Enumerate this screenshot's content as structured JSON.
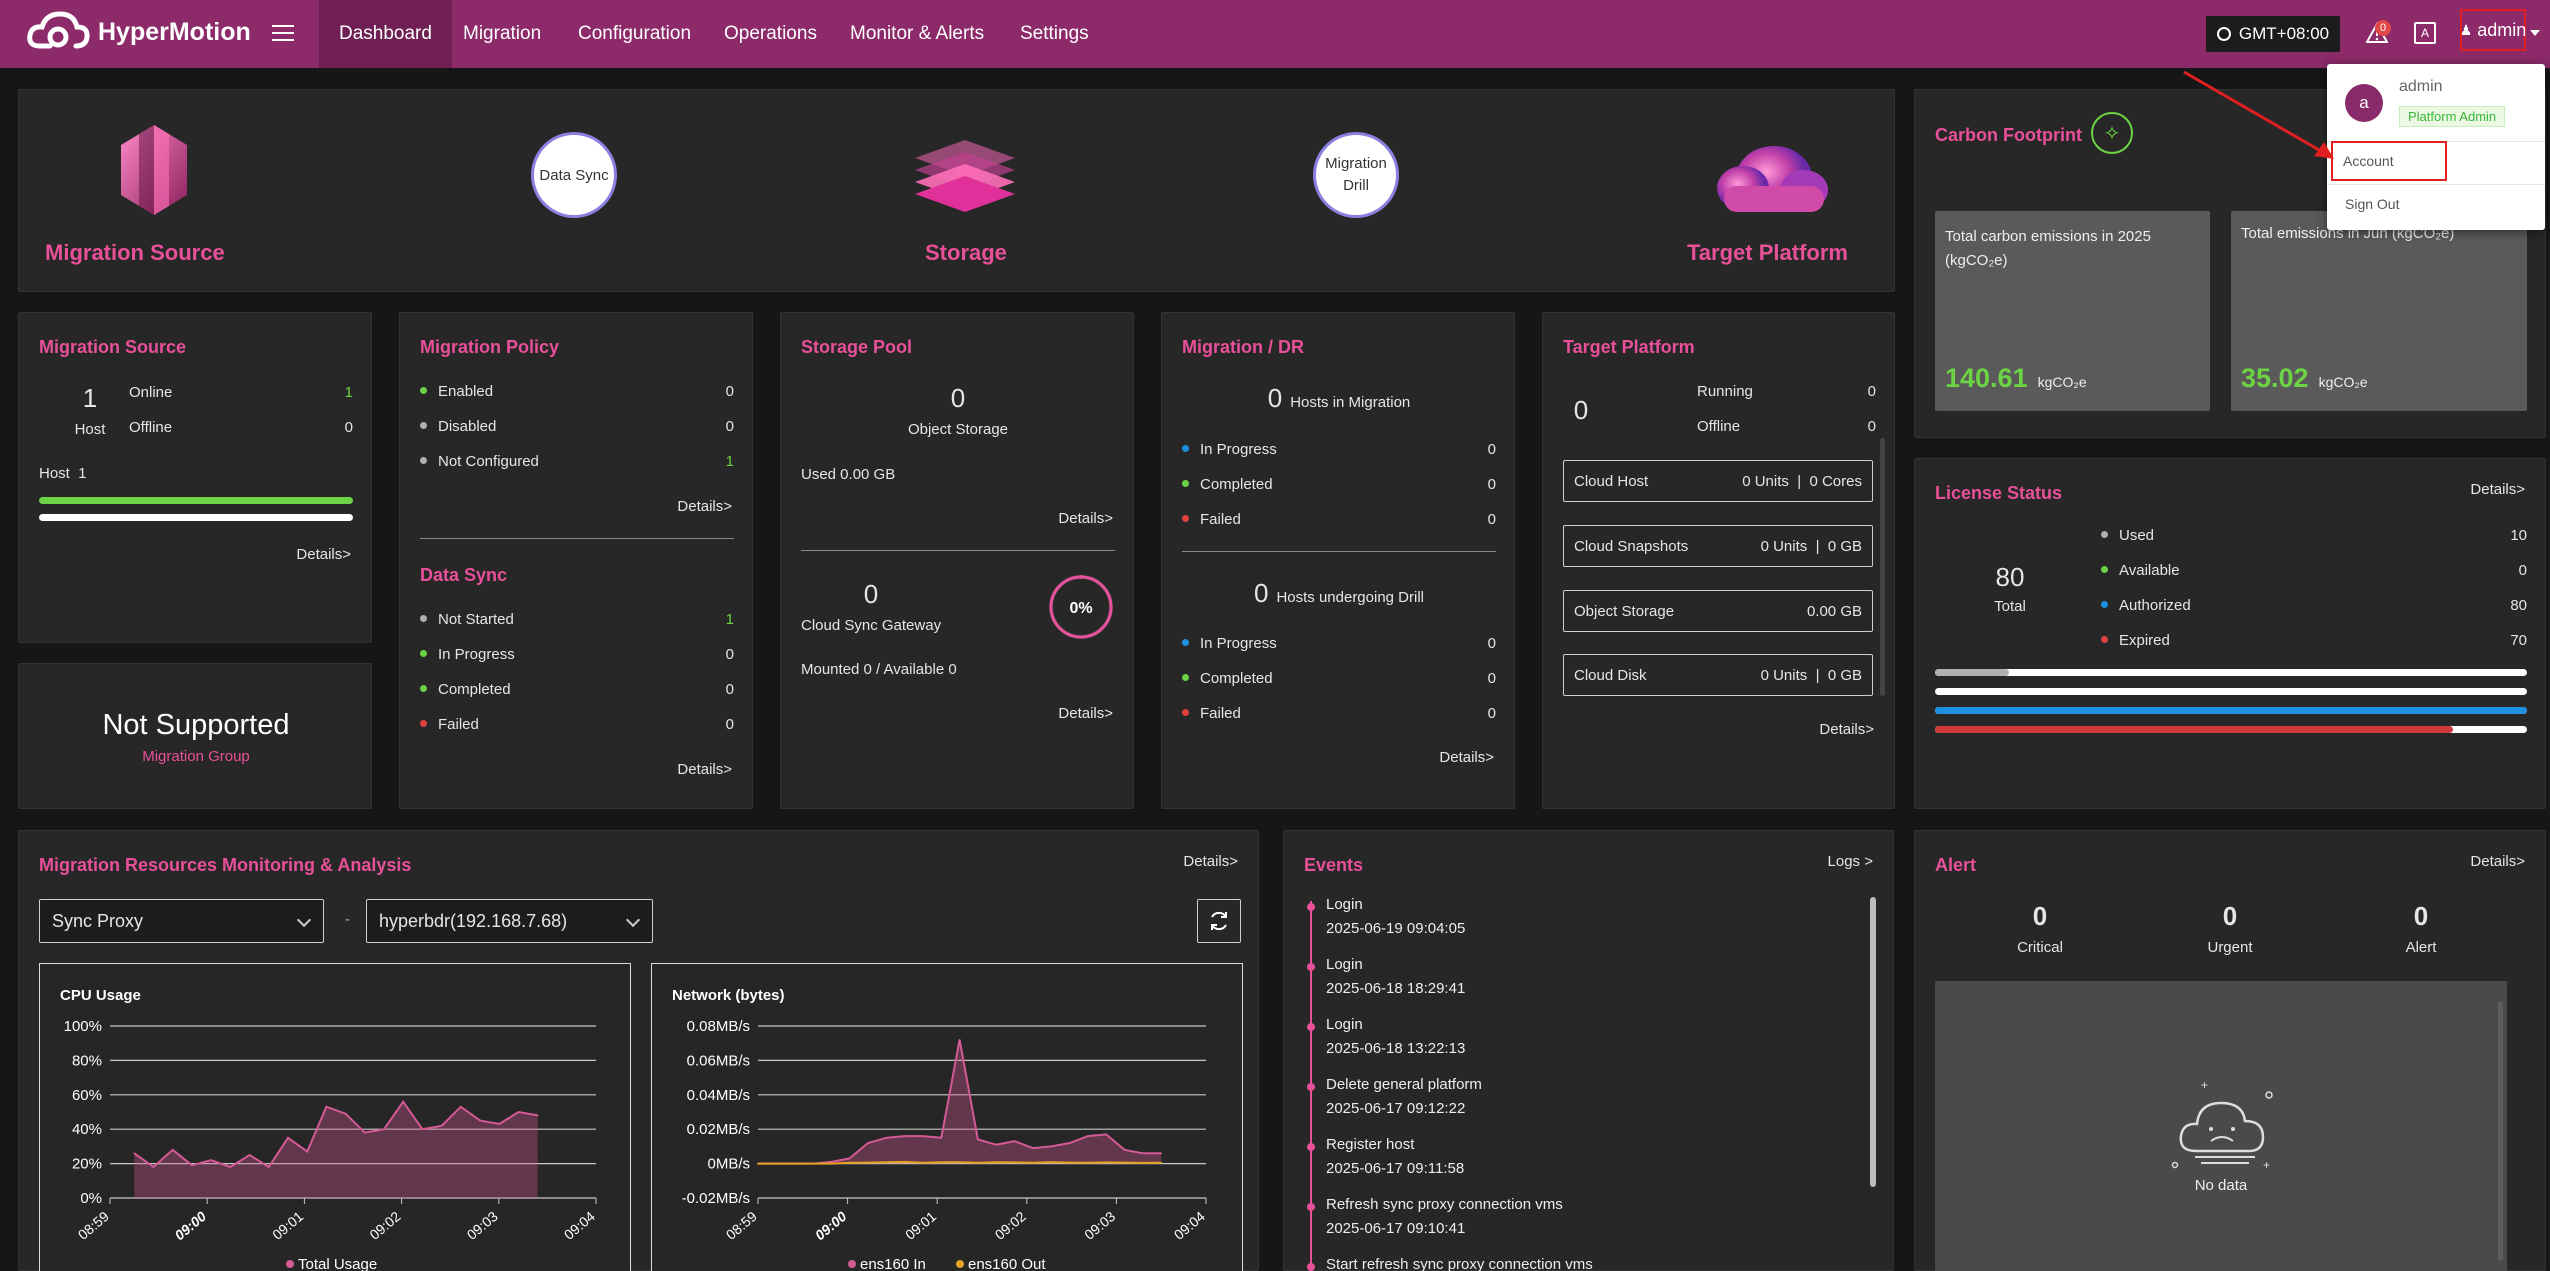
{
  "app": {
    "name": "HyperMotion"
  },
  "nav": {
    "tabs": [
      "Dashboard",
      "Migration",
      "Configuration",
      "Operations",
      "Monitor & Alerts",
      "Settings"
    ],
    "active": "Dashboard"
  },
  "header": {
    "timezone": "GMT+08:00",
    "alert_badge": "0",
    "user": "admin"
  },
  "user_menu": {
    "avatar_letter": "a",
    "name": "admin",
    "role": "Platform Admin",
    "items": [
      "Account",
      "Sign Out"
    ]
  },
  "flow": {
    "source": "Migration Source",
    "storage": "Storage",
    "target": "Target Platform",
    "node1": "Data Sync",
    "node2_line1": "Migration",
    "node2_line2": "Drill"
  },
  "carbon": {
    "title": "Carbon Footprint",
    "total_label_line1": "Total carbon emissions in 2025",
    "total_label_line2": "(kgCO₂e)",
    "total_value": "140.61",
    "month_label": "Total emissions in Jun (kgCO₂e)",
    "month_value": "35.02",
    "unit": "kgCO₂e"
  },
  "migration_source": {
    "title": "Migration Source",
    "host_count": "1",
    "host_label": "Host",
    "online_label": "Online",
    "online_value": "1",
    "offline_label": "Offline",
    "offline_value": "0",
    "host_line": "Host  1",
    "details": "Details>"
  },
  "not_supported": {
    "title": "Not Supported",
    "subtitle": "Migration Group"
  },
  "migration_policy": {
    "title": "Migration Policy",
    "items": [
      {
        "label": "Enabled",
        "value": "0",
        "color": "#6cd444"
      },
      {
        "label": "Disabled",
        "value": "0",
        "color": "#b0b0b0"
      },
      {
        "label": "Not Configured",
        "value": "1",
        "color": "#b0b0b0"
      }
    ],
    "details": "Details>"
  },
  "data_sync": {
    "title": "Data Sync",
    "items": [
      {
        "label": "Not Started",
        "value": "1",
        "color": "#b0b0b0"
      },
      {
        "label": "In Progress",
        "value": "0",
        "color": "#6cd444"
      },
      {
        "label": "Completed",
        "value": "0",
        "color": "#6cd444"
      },
      {
        "label": "Failed",
        "value": "0",
        "color": "#e04040"
      }
    ],
    "details": "Details>"
  },
  "storage_pool": {
    "title": "Storage Pool",
    "object_count": "0",
    "object_label": "Object Storage",
    "used": "Used 0.00 GB",
    "details1": "Details>",
    "gateway_count": "0",
    "gateway_label": "Cloud Sync Gateway",
    "percent": "0%",
    "percent_value": 0,
    "mounted": "Mounted 0 / Available 0",
    "details2": "Details>"
  },
  "migration_dr": {
    "title": "Migration / DR",
    "hosts_migration_count": "0",
    "hosts_migration_label": "Hosts in Migration",
    "items1": [
      {
        "label": "In Progress",
        "value": "0",
        "color": "#1e90e0"
      },
      {
        "label": "Completed",
        "value": "0",
        "color": "#6cd444"
      },
      {
        "label": "Failed",
        "value": "0",
        "color": "#e04040"
      }
    ],
    "hosts_drill_count": "0",
    "hosts_drill_label": "Hosts undergoing Drill",
    "items2": [
      {
        "label": "In Progress",
        "value": "0",
        "color": "#1e90e0"
      },
      {
        "label": "Completed",
        "value": "0",
        "color": "#6cd444"
      },
      {
        "label": "Failed",
        "value": "0",
        "color": "#e04040"
      }
    ],
    "details": "Details>"
  },
  "target_platform": {
    "title": "Target Platform",
    "count": "0",
    "running_label": "Running",
    "running_value": "0",
    "offline_label": "Offline",
    "offline_value": "0",
    "rows": [
      {
        "label": "Cloud Host",
        "value": "0 Units  |  0 Cores"
      },
      {
        "label": "Cloud Snapshots",
        "value": "0 Units  |  0 GB"
      },
      {
        "label": "Object Storage",
        "value": "0.00 GB"
      },
      {
        "label": "Cloud Disk",
        "value": "0 Units  |  0 GB"
      }
    ],
    "details": "Details>"
  },
  "license": {
    "title": "License Status",
    "details": "Details>",
    "total_value": "80",
    "total_label": "Total",
    "items": [
      {
        "label": "Used",
        "value": "10",
        "color": "#b0b0b0"
      },
      {
        "label": "Available",
        "value": "0",
        "color": "#6cd444"
      },
      {
        "label": "Authorized",
        "value": "80",
        "color": "#1e90e0"
      },
      {
        "label": "Expired",
        "value": "70",
        "color": "#e04040"
      }
    ],
    "bars": [
      {
        "color": "#b0b0b0",
        "fraction": 0.125
      },
      {
        "color": "#6cd444",
        "fraction": 0
      },
      {
        "color": "#1e90e0",
        "fraction": 1
      },
      {
        "color": "#d03a3a",
        "fraction": 0.875
      }
    ]
  },
  "monitor": {
    "title": "Migration Resources Monitoring & Analysis",
    "details": "Details>",
    "select1": "Sync Proxy",
    "separator": "-",
    "select2": "hyperbdr(192.168.7.68)",
    "refresh_icon": "refresh-icon"
  },
  "events": {
    "title": "Events",
    "logs": "Logs >",
    "items": [
      {
        "title": "Login",
        "time": "2025-06-19 09:04:05"
      },
      {
        "title": "Login",
        "time": "2025-06-18 18:29:41"
      },
      {
        "title": "Login",
        "time": "2025-06-18 13:22:13"
      },
      {
        "title": "Delete general platform",
        "time": "2025-06-17 09:12:22"
      },
      {
        "title": "Register host",
        "time": "2025-06-17 09:11:58"
      },
      {
        "title": "Refresh sync proxy connection vms",
        "time": "2025-06-17 09:10:41"
      },
      {
        "title": "Start refresh sync proxy connection vms",
        "time": ""
      }
    ]
  },
  "alert": {
    "title": "Alert",
    "details": "Details>",
    "critical_value": "0",
    "critical_label": "Critical",
    "urgent_value": "0",
    "urgent_label": "Urgent",
    "alert_value": "0",
    "alert_label": "Alert",
    "empty": "No data"
  },
  "chart_data": [
    {
      "type": "area",
      "title": "CPU Usage",
      "yticks": [
        "100%",
        "80%",
        "60%",
        "40%",
        "20%",
        "0%"
      ],
      "ylim": [
        0,
        100
      ],
      "xticks": [
        "08:59",
        "09:00",
        "09:01",
        "09:02",
        "09:03",
        "09:04"
      ],
      "bold_xtick": "09:00",
      "legend": [
        "Total Usage"
      ],
      "color": "#d45a96",
      "series": [
        {
          "name": "Total Usage",
          "values": [
            26,
            18,
            28,
            19,
            22,
            18,
            25,
            18,
            35,
            27,
            53,
            49,
            38,
            40,
            56,
            40,
            42,
            53,
            45,
            43,
            50,
            48
          ]
        }
      ]
    },
    {
      "type": "area",
      "title": "Network (bytes)",
      "yticks": [
        "0.08MB/s",
        "0.06MB/s",
        "0.04MB/s",
        "0.02MB/s",
        "0MB/s",
        "-0.02MB/s"
      ],
      "ylim": [
        -0.02,
        0.08
      ],
      "xticks": [
        "08:59",
        "09:00",
        "09:01",
        "09:02",
        "09:03",
        "09:04"
      ],
      "bold_xtick": "09:00",
      "legend": [
        "ens160 In",
        "ens160 Out"
      ],
      "colors": [
        "#d45a96",
        "#e8a020"
      ],
      "series": [
        {
          "name": "ens160 In",
          "values": [
            0,
            0,
            0,
            0,
            0.001,
            0.003,
            0.012,
            0.015,
            0.016,
            0.016,
            0.015,
            0.072,
            0.014,
            0.011,
            0.013,
            0.009,
            0.01,
            0.012,
            0.016,
            0.017,
            0.008,
            0.006,
            0.006
          ]
        },
        {
          "name": "ens160 Out",
          "values": [
            0,
            0,
            0,
            0,
            0,
            0.0005,
            0.0006,
            0.0008,
            0.001,
            0.0005,
            0.0008,
            0.0008,
            0.0005,
            0.0008,
            0.0007,
            0.0005,
            0.0009,
            0.0006,
            0.0005,
            0.0007,
            0.0006,
            0.0004,
            0.0005
          ]
        }
      ]
    }
  ]
}
